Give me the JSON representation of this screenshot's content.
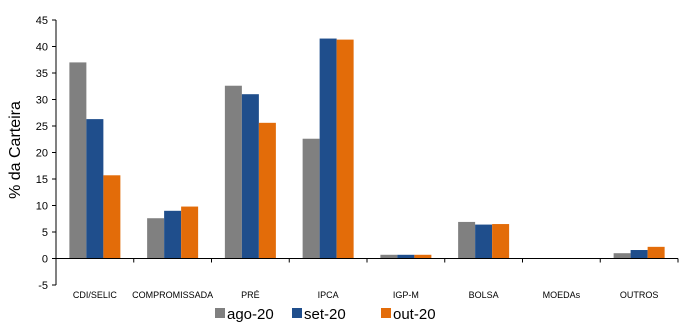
{
  "chart_data": {
    "type": "bar",
    "title": "",
    "xlabel": "",
    "ylabel": "% da Carteira",
    "ylim": [
      -5,
      45
    ],
    "yticks": [
      -5,
      0,
      5,
      10,
      15,
      20,
      25,
      30,
      35,
      40,
      45
    ],
    "grid": false,
    "legend_position": "bottom",
    "categories": [
      "CDI/SELIC",
      "COMPROMISSADA",
      "PRÉ",
      "IPCA",
      "IGP-M",
      "BOLSA",
      "MOEDAs",
      "OUTROS"
    ],
    "series": [
      {
        "name": "ago-20",
        "color": "#808080",
        "values": [
          37.0,
          7.6,
          32.6,
          22.6,
          0.7,
          6.9,
          0.0,
          1.0
        ]
      },
      {
        "name": "set-20",
        "color": "#1f4e8c",
        "values": [
          26.3,
          9.0,
          31.0,
          41.5,
          0.7,
          6.4,
          0.0,
          1.6
        ]
      },
      {
        "name": "out-20",
        "color": "#e36c09",
        "values": [
          15.7,
          9.8,
          25.6,
          41.3,
          0.7,
          6.5,
          0.0,
          2.2
        ]
      }
    ]
  }
}
